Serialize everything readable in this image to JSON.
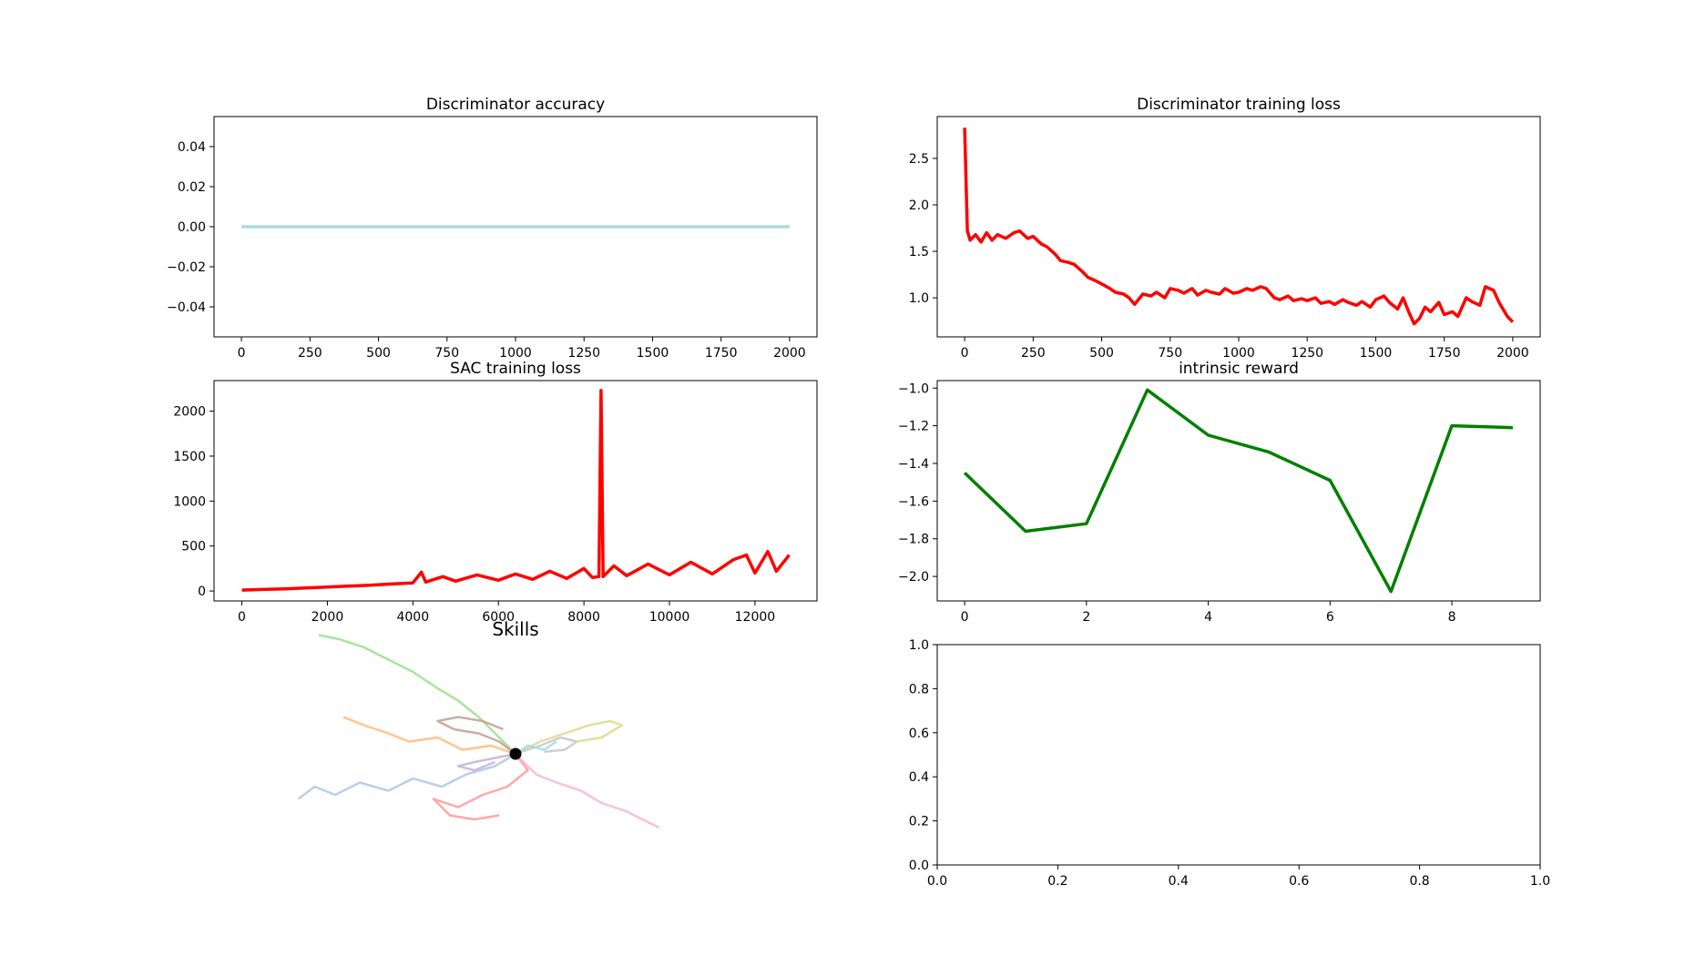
{
  "chart_data": [
    {
      "type": "line",
      "title": "Discriminator accuracy",
      "xlim": [
        -100,
        2100
      ],
      "ylim": [
        -0.055,
        0.055
      ],
      "xticks": [
        0,
        250,
        500,
        750,
        1000,
        1250,
        1500,
        1750,
        2000
      ],
      "yticks": [
        -0.04,
        -0.02,
        0.0,
        0.02,
        0.04
      ],
      "ytick_labels": [
        "−0.04",
        "−0.02",
        "0.00",
        "0.02",
        "0.04"
      ],
      "series": [
        {
          "color": "#add8e6",
          "x": [
            0,
            2000
          ],
          "y": [
            0,
            0
          ]
        }
      ]
    },
    {
      "type": "line",
      "title": "Discriminator training loss",
      "xlim": [
        -100,
        2100
      ],
      "ylim": [
        0.58,
        2.95
      ],
      "xticks": [
        0,
        250,
        500,
        750,
        1000,
        1250,
        1500,
        1750,
        2000
      ],
      "yticks": [
        1.0,
        1.5,
        2.0,
        2.5
      ],
      "ytick_labels": [
        "1.0",
        "1.5",
        "2.0",
        "2.5"
      ],
      "series": [
        {
          "color": "#ff0000",
          "x": [
            0,
            10,
            20,
            40,
            60,
            80,
            100,
            120,
            150,
            180,
            200,
            230,
            250,
            280,
            300,
            330,
            350,
            380,
            400,
            430,
            450,
            480,
            500,
            530,
            550,
            580,
            600,
            620,
            650,
            680,
            700,
            730,
            750,
            780,
            800,
            830,
            850,
            880,
            900,
            930,
            950,
            980,
            1000,
            1030,
            1050,
            1080,
            1100,
            1130,
            1150,
            1180,
            1200,
            1230,
            1250,
            1280,
            1300,
            1330,
            1350,
            1380,
            1400,
            1430,
            1450,
            1480,
            1500,
            1530,
            1550,
            1580,
            1600,
            1620,
            1640,
            1660,
            1680,
            1700,
            1730,
            1750,
            1780,
            1800,
            1830,
            1850,
            1880,
            1900,
            1930,
            1950,
            1980,
            2000
          ],
          "y": [
            2.83,
            1.72,
            1.62,
            1.68,
            1.6,
            1.7,
            1.62,
            1.68,
            1.64,
            1.7,
            1.72,
            1.64,
            1.66,
            1.58,
            1.55,
            1.47,
            1.4,
            1.38,
            1.36,
            1.28,
            1.22,
            1.18,
            1.15,
            1.1,
            1.06,
            1.04,
            1.0,
            0.93,
            1.04,
            1.02,
            1.06,
            1.0,
            1.1,
            1.08,
            1.05,
            1.1,
            1.03,
            1.08,
            1.06,
            1.04,
            1.1,
            1.05,
            1.06,
            1.1,
            1.08,
            1.12,
            1.1,
            1.0,
            0.98,
            1.02,
            0.97,
            0.99,
            0.97,
            1.0,
            0.94,
            0.96,
            0.93,
            0.98,
            0.95,
            0.92,
            0.96,
            0.9,
            0.98,
            1.02,
            0.95,
            0.88,
            1.0,
            0.85,
            0.72,
            0.78,
            0.9,
            0.85,
            0.95,
            0.82,
            0.85,
            0.8,
            1.0,
            0.96,
            0.92,
            1.12,
            1.08,
            0.95,
            0.8,
            0.74
          ]
        }
      ]
    },
    {
      "type": "line",
      "title": "SAC training loss",
      "xlim": [
        -650,
        13450
      ],
      "ylim": [
        -110,
        2340
      ],
      "xticks": [
        0,
        2000,
        4000,
        6000,
        8000,
        10000,
        12000
      ],
      "yticks": [
        0,
        500,
        1000,
        1500,
        2000
      ],
      "ytick_labels": [
        "0",
        "500",
        "1000",
        "1500",
        "2000"
      ],
      "series": [
        {
          "color": "#ff0000",
          "x": [
            0,
            500,
            1000,
            1500,
            2000,
            2500,
            3000,
            3500,
            4000,
            4100,
            4200,
            4300,
            4700,
            5000,
            5500,
            6000,
            6400,
            6800,
            7200,
            7600,
            8000,
            8200,
            8350,
            8400,
            8450,
            8700,
            9000,
            9500,
            10000,
            10500,
            11000,
            11500,
            11800,
            12000,
            12300,
            12500,
            12800
          ],
          "y": [
            10,
            18,
            25,
            35,
            45,
            55,
            65,
            78,
            90,
            150,
            210,
            100,
            160,
            110,
            180,
            120,
            190,
            130,
            220,
            140,
            250,
            150,
            160,
            2230,
            160,
            280,
            170,
            300,
            180,
            320,
            190,
            350,
            400,
            200,
            440,
            220,
            400
          ]
        }
      ]
    },
    {
      "type": "line",
      "title": "intrinsic reward",
      "xlim": [
        -0.45,
        9.45
      ],
      "ylim": [
        -2.13,
        -0.96
      ],
      "xticks": [
        0,
        2,
        4,
        6,
        8
      ],
      "yticks": [
        -2.0,
        -1.8,
        -1.6,
        -1.4,
        -1.2,
        -1.0
      ],
      "ytick_labels": [
        "−2.0",
        "−1.8",
        "−1.6",
        "−1.4",
        "−1.2",
        "−1.0"
      ],
      "series": [
        {
          "color": "#008000",
          "x": [
            0,
            1,
            2,
            3,
            4,
            5,
            6,
            7,
            8,
            9
          ],
          "y": [
            -1.45,
            -1.76,
            -1.72,
            -1.01,
            -1.25,
            -1.34,
            -1.49,
            -2.08,
            -1.2,
            -1.21
          ]
        }
      ]
    },
    {
      "type": "line",
      "title": "Skills",
      "axis_off": true,
      "origin": [
        0,
        0
      ],
      "series": [
        {
          "color": "#aec7e8",
          "x": [
            0,
            -0.5,
            -1.2,
            -1.8,
            -2.5,
            -3.1,
            -3.8,
            -4.4,
            -4.9,
            -5.3
          ],
          "y": [
            0,
            -0.3,
            -0.5,
            -0.8,
            -0.6,
            -0.9,
            -0.7,
            -1.0,
            -0.8,
            -1.1
          ]
        },
        {
          "color": "#ffbb78",
          "x": [
            0,
            -0.6,
            -1.3,
            -1.9,
            -2.6,
            -3.1,
            -3.7,
            -4.2
          ],
          "y": [
            0,
            0.2,
            0.1,
            0.4,
            0.3,
            0.5,
            0.7,
            0.9
          ]
        },
        {
          "color": "#98df8a",
          "x": [
            0,
            -0.4,
            -0.9,
            -1.4,
            -1.9,
            -2.5,
            -3.1,
            -3.7,
            -4.3,
            -4.8
          ],
          "y": [
            0,
            0.4,
            0.9,
            1.3,
            1.6,
            2.0,
            2.3,
            2.6,
            2.8,
            2.9
          ]
        },
        {
          "color": "#ff9896",
          "x": [
            0,
            0.3,
            -0.2,
            -0.8,
            -1.4,
            -2.0,
            -1.6,
            -1.0,
            -0.4
          ],
          "y": [
            0,
            -0.4,
            -0.8,
            -1.0,
            -1.3,
            -1.1,
            -1.5,
            -1.6,
            -1.5
          ]
        },
        {
          "color": "#c5b0d5",
          "x": [
            0,
            -0.5,
            -1.0,
            -1.4,
            -1.0,
            -0.5
          ],
          "y": [
            0,
            -0.1,
            -0.2,
            -0.3,
            -0.4,
            -0.2
          ]
        },
        {
          "color": "#c49c94",
          "x": [
            0,
            -0.4,
            -0.9,
            -1.5,
            -1.9,
            -1.4,
            -0.8,
            -0.3
          ],
          "y": [
            0,
            0.3,
            0.5,
            0.6,
            0.8,
            0.9,
            0.8,
            0.6
          ]
        },
        {
          "color": "#f7b6d2",
          "x": [
            0,
            0.5,
            1.0,
            1.6,
            2.1,
            2.7,
            3.1,
            3.5
          ],
          "y": [
            0,
            -0.5,
            -0.7,
            -0.9,
            -1.2,
            -1.4,
            -1.6,
            -1.8
          ]
        },
        {
          "color": "#c7c7c7",
          "x": [
            0,
            0.6,
            1.1,
            1.5,
            1.2,
            0.7
          ],
          "y": [
            0,
            0.2,
            0.4,
            0.3,
            0.1,
            0.05
          ]
        },
        {
          "color": "#dbdb8d",
          "x": [
            0,
            0.6,
            1.2,
            1.8,
            2.3,
            2.6,
            2.1,
            1.5
          ],
          "y": [
            0,
            0.3,
            0.5,
            0.7,
            0.8,
            0.7,
            0.4,
            0.3
          ]
        },
        {
          "color": "#9edae5",
          "x": [
            0,
            0.3,
            0.7,
            1.0
          ],
          "y": [
            0,
            0.2,
            0.1,
            0.3
          ]
        }
      ]
    },
    {
      "type": "line",
      "title": "",
      "empty": true,
      "xlim": [
        0,
        1
      ],
      "ylim": [
        0,
        1
      ],
      "xticks": [
        0,
        0.2,
        0.4,
        0.6,
        0.8,
        1.0
      ],
      "yticks": [
        0,
        0.2,
        0.4,
        0.6,
        0.8,
        1.0
      ],
      "xtick_labels": [
        "0.0",
        "0.2",
        "0.4",
        "0.6",
        "0.8",
        "1.0"
      ],
      "ytick_labels": [
        "0.0",
        "0.2",
        "0.4",
        "0.6",
        "0.8",
        "1.0"
      ],
      "series": []
    }
  ]
}
